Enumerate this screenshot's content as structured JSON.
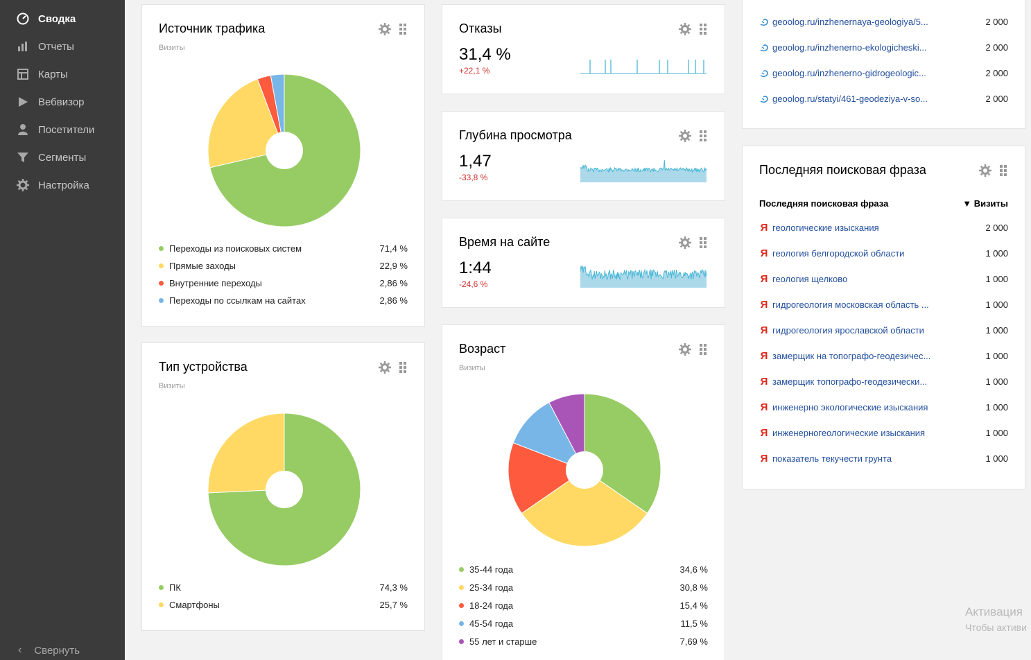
{
  "sidebar": {
    "items": [
      {
        "label": "Сводка",
        "icon": "dashboard-icon",
        "active": true
      },
      {
        "label": "Отчеты",
        "icon": "bar-chart-icon"
      },
      {
        "label": "Карты",
        "icon": "map-icon"
      },
      {
        "label": "Вебвизор",
        "icon": "play-icon"
      },
      {
        "label": "Посетители",
        "icon": "user-icon"
      },
      {
        "label": "Сегменты",
        "icon": "filter-icon"
      },
      {
        "label": "Настройка",
        "icon": "gear-icon"
      }
    ],
    "collapse_label": "Свернуть"
  },
  "traffic_source": {
    "title": "Источник трафика",
    "subtitle": "Визиты",
    "legend": [
      {
        "label": "Переходы из поисковых систем",
        "value": "71,4 %",
        "color": "#97cc64"
      },
      {
        "label": "Прямые заходы",
        "value": "22,9 %",
        "color": "#ffd963"
      },
      {
        "label": "Внутренние переходы",
        "value": "2,86 %",
        "color": "#fd5a3e"
      },
      {
        "label": "Переходы по ссылкам на сайтах",
        "value": "2,86 %",
        "color": "#77b6e7"
      }
    ]
  },
  "device_type": {
    "title": "Тип устройства",
    "subtitle": "Визиты",
    "legend": [
      {
        "label": "ПК",
        "value": "74,3 %",
        "color": "#97cc64"
      },
      {
        "label": "Смартфоны",
        "value": "25,7 %",
        "color": "#ffd963"
      }
    ]
  },
  "bounce": {
    "title": "Отказы",
    "value": "31,4 %",
    "delta": "+22,1 %",
    "spark_color": "#48b6d6"
  },
  "depth": {
    "title": "Глубина просмотра",
    "value": "1,47",
    "delta": "-33,8 %",
    "spark_color": "#48b6d6"
  },
  "time_on_site": {
    "title": "Время на сайте",
    "value": "1:44",
    "delta": "-24,6 %",
    "spark_color": "#48b6d6"
  },
  "age": {
    "title": "Возраст",
    "subtitle": "Визиты",
    "legend": [
      {
        "label": "35-44 года",
        "value": "34,6 %",
        "color": "#97cc64"
      },
      {
        "label": "25-34 года",
        "value": "30,8 %",
        "color": "#ffd963"
      },
      {
        "label": "18-24 года",
        "value": "15,4 %",
        "color": "#fd5a3e"
      },
      {
        "label": "45-54 года",
        "value": "11,5 %",
        "color": "#77b6e7"
      },
      {
        "label": "55 лет и старше",
        "value": "7,69 %",
        "color": "#a955b8"
      }
    ]
  },
  "entry_pages": {
    "rows": [
      {
        "text": "geoolog.ru/inzhenernaya-geologiya/5...",
        "value": "2 000"
      },
      {
        "text": "geoolog.ru/inzhenerno-ekologicheski...",
        "value": "2 000"
      },
      {
        "text": "geoolog.ru/inzhenerno-gidrogeologic...",
        "value": "2 000"
      },
      {
        "text": "geoolog.ru/statyi/461-geodeziya-v-so...",
        "value": "2 000"
      }
    ]
  },
  "search_phrase": {
    "title": "Последняя поисковая фраза",
    "col_phrase": "Последняя поисковая фраза",
    "col_visits": "▼ Визиты",
    "rows": [
      {
        "text": "геологические изыскания",
        "value": "2 000"
      },
      {
        "text": "геология белгородской области",
        "value": "1 000"
      },
      {
        "text": "геология щелково",
        "value": "1 000"
      },
      {
        "text": "гидрогеология московская область ...",
        "value": "1 000"
      },
      {
        "text": "гидрогеология ярославской области",
        "value": "1 000"
      },
      {
        "text": "замерщик на топографо-геодезичес...",
        "value": "1 000"
      },
      {
        "text": "замерщик топографо-геодезически...",
        "value": "1 000"
      },
      {
        "text": "инженерно экологические изыскания",
        "value": "1 000"
      },
      {
        "text": "инженерногеологические изыскания",
        "value": "1 000"
      },
      {
        "text": "показатель текучести грунта",
        "value": "1 000"
      }
    ]
  },
  "watermark": {
    "line1": "Активация",
    "line2": "Чтобы активи"
  },
  "chart_data": [
    {
      "type": "pie",
      "title": "Источник трафика",
      "categories": [
        "Переходы из поисковых систем",
        "Прямые заходы",
        "Внутренние переходы",
        "Переходы по ссылкам на сайтах"
      ],
      "values": [
        71.4,
        22.9,
        2.86,
        2.86
      ],
      "colors": [
        "#97cc64",
        "#ffd963",
        "#fd5a3e",
        "#77b6e7"
      ]
    },
    {
      "type": "pie",
      "title": "Тип устройства",
      "categories": [
        "ПК",
        "Смартфоны"
      ],
      "values": [
        74.3,
        25.7
      ],
      "colors": [
        "#97cc64",
        "#ffd963"
      ]
    },
    {
      "type": "pie",
      "title": "Возраст",
      "categories": [
        "35-44 года",
        "25-34 года",
        "18-24 года",
        "45-54 года",
        "55 лет и старше"
      ],
      "values": [
        34.6,
        30.8,
        15.4,
        11.5,
        7.69
      ],
      "colors": [
        "#97cc64",
        "#ffd963",
        "#fd5a3e",
        "#77b6e7",
        "#a955b8"
      ]
    }
  ]
}
